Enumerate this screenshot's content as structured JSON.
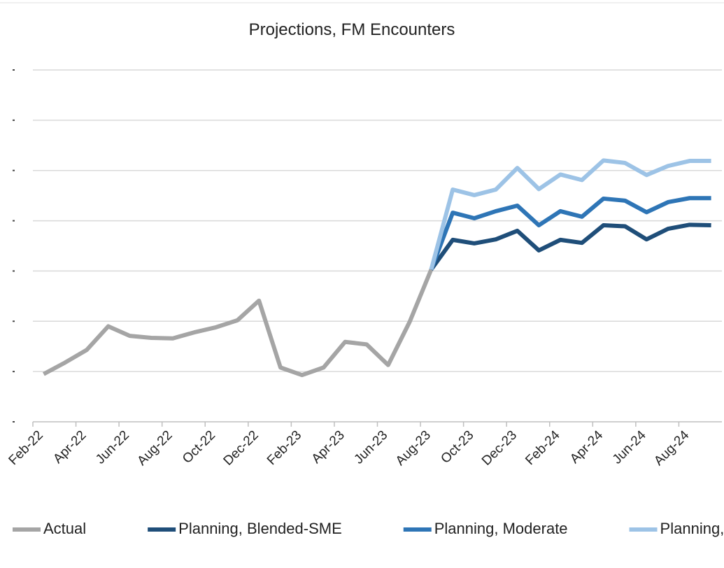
{
  "chart_data": {
    "type": "line",
    "title": "Projections, FM Encounters",
    "categories": [
      "Feb-22",
      null,
      "Apr-22",
      null,
      "Jun-22",
      null,
      "Aug-22",
      null,
      "Oct-22",
      null,
      "Dec-22",
      null,
      "Feb-23",
      null,
      "Apr-23",
      null,
      "Jun-23",
      null,
      "Aug-23",
      null,
      "Oct-23",
      null,
      "Dec-23",
      null,
      "Feb-24",
      null,
      "Apr-24",
      null,
      "Jun-24",
      null,
      "Aug-24",
      null
    ],
    "series": [
      {
        "name": "Actual",
        "color": "#a5a5a5",
        "values": [
          0.95,
          1.18,
          1.43,
          1.9,
          1.71,
          1.67,
          1.66,
          1.78,
          1.88,
          2.02,
          2.41,
          1.08,
          0.93,
          1.08,
          1.59,
          1.54,
          1.13,
          1.99,
          3.03,
          null,
          null,
          null,
          null,
          null,
          null,
          null,
          null,
          null,
          null,
          null,
          null,
          null
        ]
      },
      {
        "name": "Planning, Blended-SME",
        "color": "#1f4e79",
        "values": [
          null,
          null,
          null,
          null,
          null,
          null,
          null,
          null,
          null,
          null,
          null,
          null,
          null,
          null,
          null,
          null,
          null,
          null,
          3.03,
          3.62,
          3.55,
          3.63,
          3.8,
          3.41,
          3.62,
          3.56,
          3.91,
          3.89,
          3.63,
          3.84,
          3.92,
          3.91
        ]
      },
      {
        "name": "Planning, Moderate",
        "color": "#2e75b6",
        "values": [
          null,
          null,
          null,
          null,
          null,
          null,
          null,
          null,
          null,
          null,
          null,
          null,
          null,
          null,
          null,
          null,
          null,
          null,
          3.03,
          4.16,
          4.05,
          4.19,
          4.3,
          3.91,
          4.19,
          4.08,
          4.44,
          4.4,
          4.17,
          4.37,
          4.45,
          4.45
        ]
      },
      {
        "name": "Planning, High",
        "color": "#9dc3e6",
        "values": [
          null,
          null,
          null,
          null,
          null,
          null,
          null,
          null,
          null,
          null,
          null,
          null,
          null,
          null,
          null,
          null,
          null,
          null,
          3.03,
          4.62,
          4.51,
          4.62,
          5.05,
          4.63,
          4.92,
          4.81,
          5.2,
          5.15,
          4.91,
          5.09,
          5.19,
          5.19
        ]
      }
    ],
    "ylim": [
      0,
      7
    ],
    "yticks": [
      0,
      1,
      2,
      3,
      4,
      5,
      6,
      7
    ],
    "grid": true,
    "legend": "bottom"
  }
}
